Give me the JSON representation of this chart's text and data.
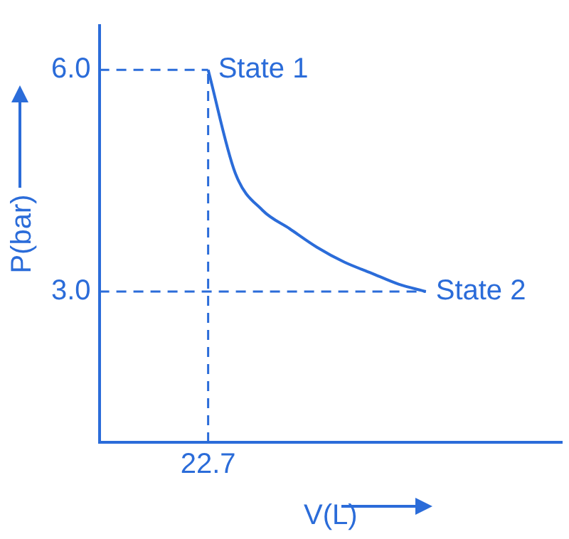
{
  "chart_data": {
    "type": "line",
    "xlabel": "V(L)",
    "ylabel": "P(bar)",
    "categories": [
      null,
      null,
      null,
      null,
      "22.7",
      null,
      null,
      null,
      null,
      null,
      null,
      null,
      null,
      null,
      null,
      null,
      null,
      null
    ],
    "series": [
      {
        "color": "#2b6cd9",
        "values": [
          null,
          null,
          null,
          null,
          6.0,
          4.6,
          4.1,
          3.85,
          3.6,
          3.4,
          3.25,
          3.1,
          3.0,
          null,
          null,
          null,
          null,
          null
        ]
      }
    ],
    "ylim": [
      0.96,
      6.6
    ],
    "yticks": [
      {
        "value": 3,
        "label": "3.0"
      },
      {
        "value": 6,
        "label": "6.0"
      }
    ],
    "ref_lines": [
      {
        "axis": "y",
        "value": 6,
        "color": "#2b6cd9",
        "line_style": "dashed"
      },
      {
        "axis": "y",
        "value": 3,
        "color": "#2b6cd9",
        "line_style": "dashed"
      },
      {
        "axis": "x",
        "value": "22.7",
        "color": "#2b6cd9",
        "line_style": "dashed"
      }
    ],
    "annotations": [
      {
        "text": "State 1",
        "x": "22.7",
        "y": 6.0
      },
      "State 2"
    ],
    "grid": false,
    "legend": false,
    "marker": "none",
    "line_style": "solid"
  }
}
